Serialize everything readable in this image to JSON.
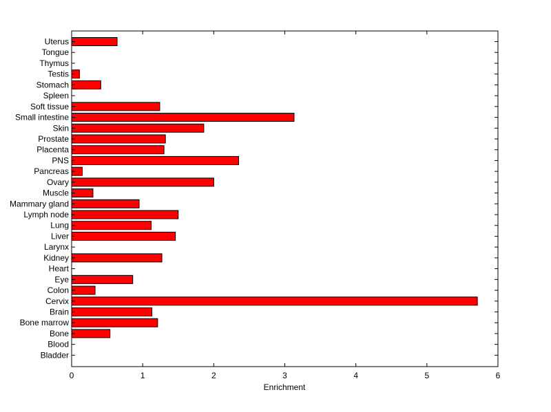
{
  "chart_data": {
    "type": "bar",
    "orientation": "horizontal",
    "xlabel": "Enrichment",
    "ylabel": "",
    "title": "",
    "xlim": [
      0,
      6
    ],
    "xticks": [
      0,
      1,
      2,
      3,
      4,
      5,
      6
    ],
    "grid": false,
    "bar_color": "#ff0000",
    "bar_edge_color": "#000000",
    "categories": [
      "Uterus",
      "Tongue",
      "Thymus",
      "Testis",
      "Stomach",
      "Spleen",
      "Soft tissue",
      "Small intestine",
      "Skin",
      "Prostate",
      "Placenta",
      "PNS",
      "Pancreas",
      "Ovary",
      "Muscle",
      "Mammary gland",
      "Lymph node",
      "Lung",
      "Liver",
      "Larynx",
      "Kidney",
      "Heart",
      "Eye",
      "Colon",
      "Cervix",
      "Brain",
      "Bone marrow",
      "Bone",
      "Blood",
      "Bladder"
    ],
    "values": [
      0.64,
      0,
      0,
      0.11,
      0.41,
      0,
      1.24,
      3.13,
      1.86,
      1.32,
      1.3,
      2.35,
      0.15,
      2.0,
      0.3,
      0.95,
      1.5,
      1.12,
      1.46,
      0,
      1.27,
      0,
      0.86,
      0.33,
      5.71,
      1.13,
      1.21,
      0.54,
      0,
      0
    ]
  }
}
